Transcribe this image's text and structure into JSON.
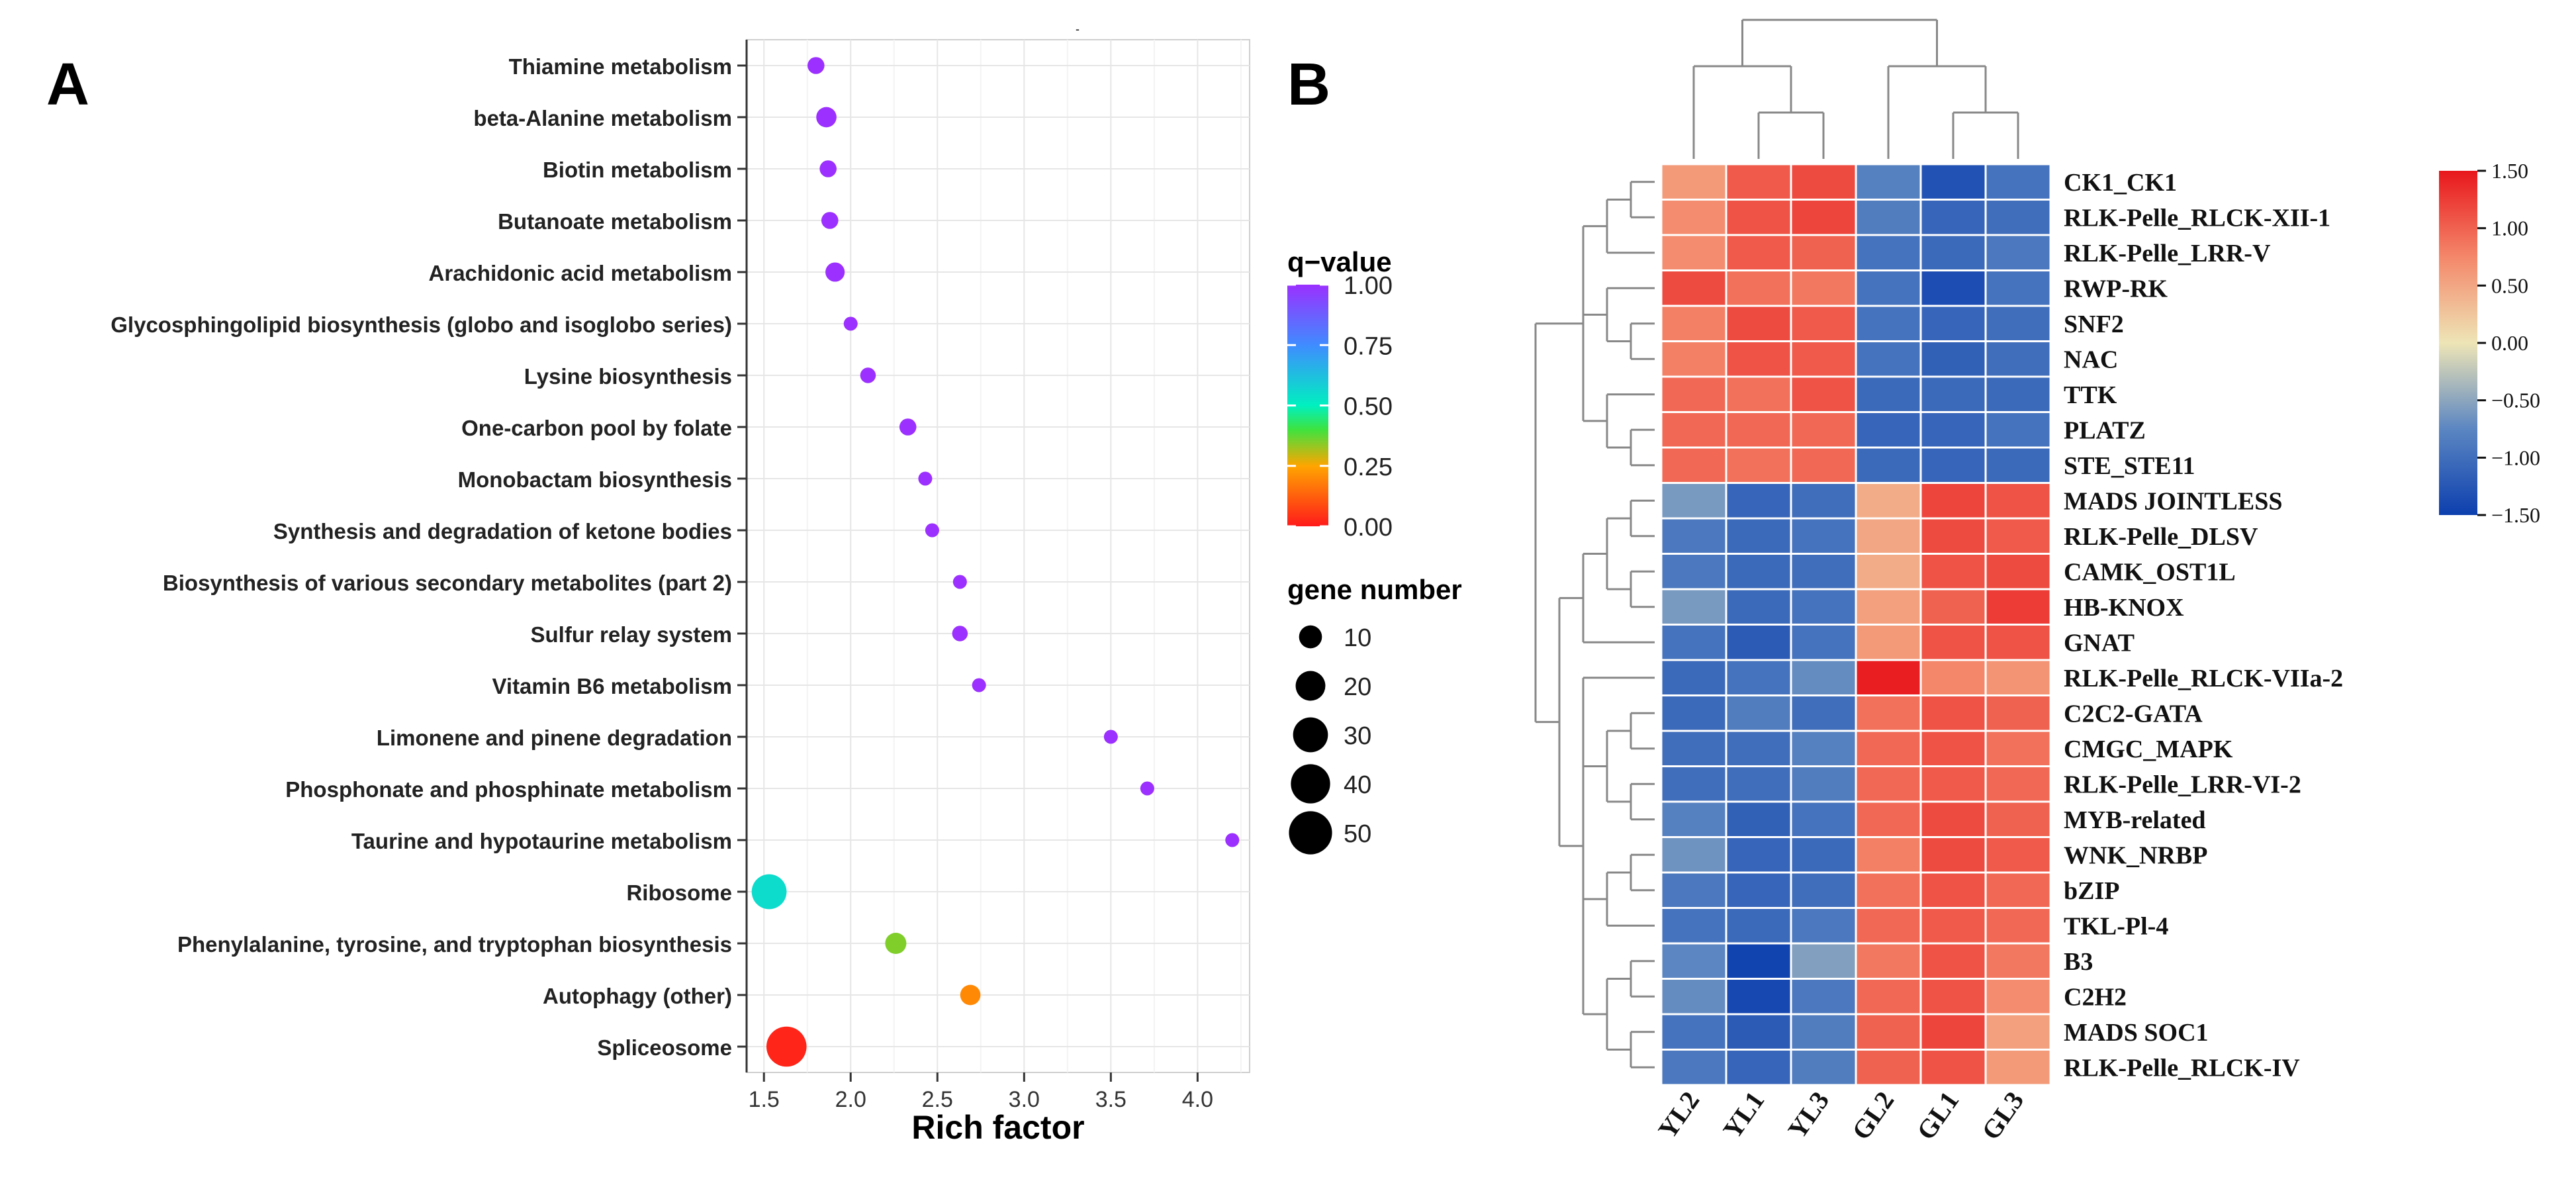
{
  "panel_labels": {
    "a": "A",
    "b": "B"
  },
  "chart_data": [
    {
      "type": "scatter",
      "panel": "A",
      "title": "",
      "xlabel": "Rich factor",
      "ylabel": "",
      "xlim": [
        1.4,
        4.3
      ],
      "xticks": [
        1.5,
        2.0,
        2.5,
        3.0,
        3.5,
        4.0
      ],
      "xtick_labels": [
        "1.5",
        "2.0",
        "2.5",
        "3.0",
        "3.5",
        "4.0"
      ],
      "grid": true,
      "categories": [
        "Thiamine metabolism",
        "beta-Alanine metabolism",
        "Biotin metabolism",
        "Butanoate metabolism",
        "Arachidonic acid metabolism",
        "Glycosphingolipid biosynthesis (globo and isoglobo series)",
        "Lysine biosynthesis",
        "One-carbon pool by folate",
        "Monobactam biosynthesis",
        "Synthesis and degradation of ketone bodies",
        "Biosynthesis of various secondary metabolites (part 2)",
        "Sulfur relay system",
        "Vitamin B6 metabolism",
        "Limonene and pinene degradation",
        "Phosphonate and phosphinate metabolism",
        "Taurine and hypotaurine metabolism",
        "Ribosome",
        "Phenylalanine, tyrosine, and tryptophan biosynthesis",
        "Autophagy (other)",
        "Spliceosome"
      ],
      "rich_factor": [
        1.8,
        1.86,
        1.87,
        1.88,
        1.91,
        2.0,
        2.1,
        2.33,
        2.43,
        2.47,
        2.63,
        2.63,
        2.74,
        3.5,
        3.71,
        4.2,
        1.53,
        2.26,
        2.69,
        1.63
      ],
      "q_value": [
        1.0,
        1.0,
        1.0,
        1.0,
        1.0,
        1.0,
        1.0,
        1.0,
        1.0,
        1.0,
        1.0,
        1.0,
        1.0,
        1.0,
        1.0,
        1.0,
        0.55,
        0.35,
        0.2,
        0.02
      ],
      "gene_number": [
        4,
        7,
        4,
        4,
        6,
        2,
        3,
        4,
        2,
        2,
        2,
        3,
        2,
        2,
        2,
        2,
        30,
        8,
        7,
        42
      ],
      "color_legend": {
        "title": "q−value",
        "ticks": [
          "1.00",
          "0.75",
          "0.50",
          "0.25",
          "0.00"
        ],
        "tick_values": [
          1.0,
          0.75,
          0.5,
          0.25,
          0.0
        ]
      },
      "size_legend": {
        "title": "gene number",
        "values": [
          10,
          20,
          30,
          40,
          50
        ],
        "labels": [
          "10",
          "20",
          "30",
          "40",
          "50"
        ]
      },
      "top_mark": "-"
    },
    {
      "type": "heatmap",
      "panel": "B",
      "columns": [
        "YL2",
        "YL1",
        "YL3",
        "GL2",
        "GL1",
        "GL3"
      ],
      "rows": [
        "CK1_CK1",
        "RLK-Pelle_RLCK-XII-1",
        "RLK-Pelle_LRR-V",
        "RWP-RK",
        "SNF2",
        "NAC",
        "TTK",
        "PLATZ",
        "STE_STE11",
        "MADS JOINTLESS",
        "RLK-Pelle_DLSV",
        "CAMK_OST1L",
        "HB-KNOX",
        "GNAT",
        "RLK-Pelle_RLCK-VIIa-2",
        "C2C2-GATA",
        "CMGC_MAPK",
        "RLK-Pelle_LRR-VI-2",
        "MYB-related",
        "WNK_NRBP",
        "bZIP",
        "TKL-Pl-4",
        "B3",
        "C2H2",
        "MADS SOC1",
        "RLK-Pelle_RLCK-IV"
      ],
      "values": [
        [
          0.6,
          1.05,
          1.15,
          -0.8,
          -1.3,
          -0.95
        ],
        [
          0.7,
          1.1,
          1.2,
          -0.85,
          -1.1,
          -1.0
        ],
        [
          0.7,
          1.05,
          1.0,
          -0.95,
          -1.05,
          -0.9
        ],
        [
          1.15,
          0.9,
          0.85,
          -0.95,
          -1.35,
          -0.95
        ],
        [
          0.8,
          1.15,
          1.05,
          -0.95,
          -1.1,
          -1.0
        ],
        [
          0.8,
          1.1,
          1.05,
          -0.95,
          -1.15,
          -1.0
        ],
        [
          0.95,
          0.9,
          1.1,
          -1.05,
          -1.05,
          -1.05
        ],
        [
          0.95,
          0.95,
          0.95,
          -1.1,
          -1.1,
          -0.95
        ],
        [
          0.95,
          0.9,
          0.95,
          -1.05,
          -1.1,
          -1.05
        ],
        [
          -0.6,
          -1.1,
          -1.0,
          0.45,
          1.2,
          1.1
        ],
        [
          -0.9,
          -1.05,
          -0.95,
          0.5,
          1.15,
          1.05
        ],
        [
          -0.9,
          -1.05,
          -1.0,
          0.45,
          1.1,
          1.15
        ],
        [
          -0.6,
          -1.05,
          -0.95,
          0.55,
          1.0,
          1.25
        ],
        [
          -0.95,
          -1.2,
          -0.95,
          0.6,
          1.1,
          1.1
        ],
        [
          -1.05,
          -0.95,
          -0.7,
          1.45,
          0.75,
          0.65
        ],
        [
          -1.05,
          -0.85,
          -1.0,
          0.9,
          1.1,
          1.0
        ],
        [
          -1.0,
          -1.0,
          -0.8,
          0.95,
          1.1,
          0.9
        ],
        [
          -1.0,
          -1.0,
          -0.85,
          0.95,
          1.05,
          0.95
        ],
        [
          -0.8,
          -1.15,
          -0.95,
          0.95,
          1.15,
          1.0
        ],
        [
          -0.65,
          -1.1,
          -1.05,
          0.8,
          1.15,
          1.05
        ],
        [
          -0.9,
          -1.1,
          -1.0,
          0.9,
          1.1,
          0.95
        ],
        [
          -0.95,
          -1.05,
          -0.9,
          0.95,
          1.05,
          0.95
        ],
        [
          -0.75,
          -1.45,
          -0.55,
          0.85,
          1.1,
          0.85
        ],
        [
          -0.7,
          -1.4,
          -0.9,
          0.95,
          1.1,
          0.7
        ],
        [
          -0.95,
          -1.2,
          -0.85,
          1.0,
          1.2,
          0.55
        ],
        [
          -0.9,
          -1.1,
          -0.85,
          1.0,
          1.1,
          0.6
        ]
      ],
      "colorbar": {
        "min": -1.5,
        "max": 1.5,
        "ticks": [
          "1.50",
          "1.00",
          "0.50",
          "0.00",
          "−0.50",
          "−1.00",
          "−1.50"
        ],
        "tick_values": [
          1.5,
          1.0,
          0.5,
          0.0,
          -0.5,
          -1.0,
          -1.5
        ]
      },
      "row_dendrogram": "(((((1,2),3),(4,(5,6)),(7,(8,9)))),((((10,11),(12,13)),14),(15,((16,17),(18,19)),((20,21),22),((23,24),(25,26)))))",
      "column_dendrogram": "((1,(2,3)),(4,(5,6)))"
    }
  ]
}
